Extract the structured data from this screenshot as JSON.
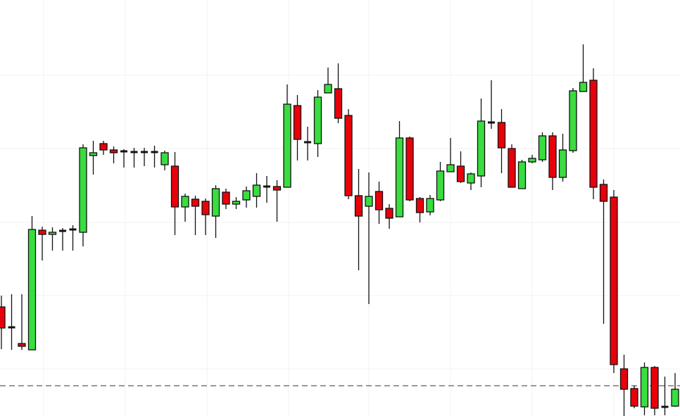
{
  "chart_data": {
    "type": "candlestick",
    "categories": [
      null,
      null,
      null,
      null,
      null,
      null,
      null,
      null,
      null,
      null,
      null,
      null,
      null,
      null,
      null,
      null,
      null,
      null,
      null,
      null,
      null,
      null,
      null,
      null,
      null,
      null,
      null,
      null,
      null,
      null,
      null,
      null,
      null,
      null,
      null,
      null,
      null,
      null,
      null,
      null,
      null,
      null,
      null,
      null,
      null,
      null,
      null,
      null,
      null,
      null,
      null,
      null,
      null,
      null,
      null,
      null,
      null,
      null,
      null,
      null,
      null,
      null,
      null,
      null,
      null,
      null,
      null
    ],
    "open": [
      155,
      126,
      103,
      94,
      264,
      258,
      263,
      265,
      261,
      370,
      387,
      378,
      376,
      375,
      375,
      375,
      357,
      355,
      297,
      308,
      305,
      284,
      318,
      301,
      307,
      312,
      326,
      326,
      325,
      441,
      389,
      387,
      459,
      465,
      427,
      313,
      298,
      319,
      295,
      283,
      395,
      309,
      290,
      307,
      347,
      355,
      331,
      341,
      417,
      417,
      380,
      323,
      361,
      364,
      398,
      339,
      377,
      461,
      477,
      329,
      311,
      67,
      39,
      13,
      69,
      13,
      14
    ],
    "high": [
      171,
      173,
      173,
      284,
      269,
      268,
      267,
      271,
      386,
      391,
      391,
      383,
      379,
      381,
      381,
      384,
      377,
      375,
      316,
      313,
      309,
      328,
      323,
      311,
      326,
      345,
      341,
      335,
      471,
      456,
      411,
      463,
      495,
      501,
      436,
      351,
      346,
      333,
      301,
      419,
      397,
      311,
      314,
      361,
      395,
      376,
      346,
      451,
      477,
      436,
      386,
      364,
      371,
      403,
      403,
      401,
      466,
      528,
      494,
      336,
      321,
      87,
      43,
      76,
      71,
      56,
      61
    ],
    "low": [
      95,
      94,
      94,
      94,
      221,
      235,
      235,
      235,
      241,
      343,
      371,
      359,
      353,
      353,
      355,
      353,
      349,
      257,
      276,
      257,
      257,
      253,
      294,
      294,
      296,
      296,
      303,
      276,
      325,
      363,
      363,
      368,
      459,
      416,
      308,
      207,
      159,
      273,
      266,
      283,
      305,
      275,
      285,
      305,
      347,
      331,
      321,
      325,
      408,
      345,
      325,
      323,
      359,
      361,
      321,
      333,
      374,
      461,
      308,
      131,
      61,
      0,
      11,
      1,
      1,
      1,
      13
    ],
    "close": [
      125,
      126,
      99,
      265,
      258,
      261,
      263,
      265,
      381,
      374,
      378,
      374,
      376,
      375,
      375,
      375,
      374,
      297,
      312,
      298,
      286,
      323,
      301,
      305,
      320,
      328,
      326,
      321,
      443,
      393,
      389,
      453,
      471,
      423,
      313,
      284,
      312,
      293,
      281,
      395,
      307,
      289,
      309,
      348,
      357,
      333,
      344,
      419,
      417,
      381,
      325,
      361,
      366,
      398,
      339,
      378,
      462,
      474,
      325,
      305,
      73,
      38,
      14,
      69,
      11,
      13,
      38
    ],
    "up_color": "#39dd3f",
    "down_color": "#e8000b",
    "ylim": [
      0,
      591
    ],
    "yticks": [
      67,
      171,
      275,
      380,
      484
    ],
    "grid": true,
    "reference_line": 43
  }
}
